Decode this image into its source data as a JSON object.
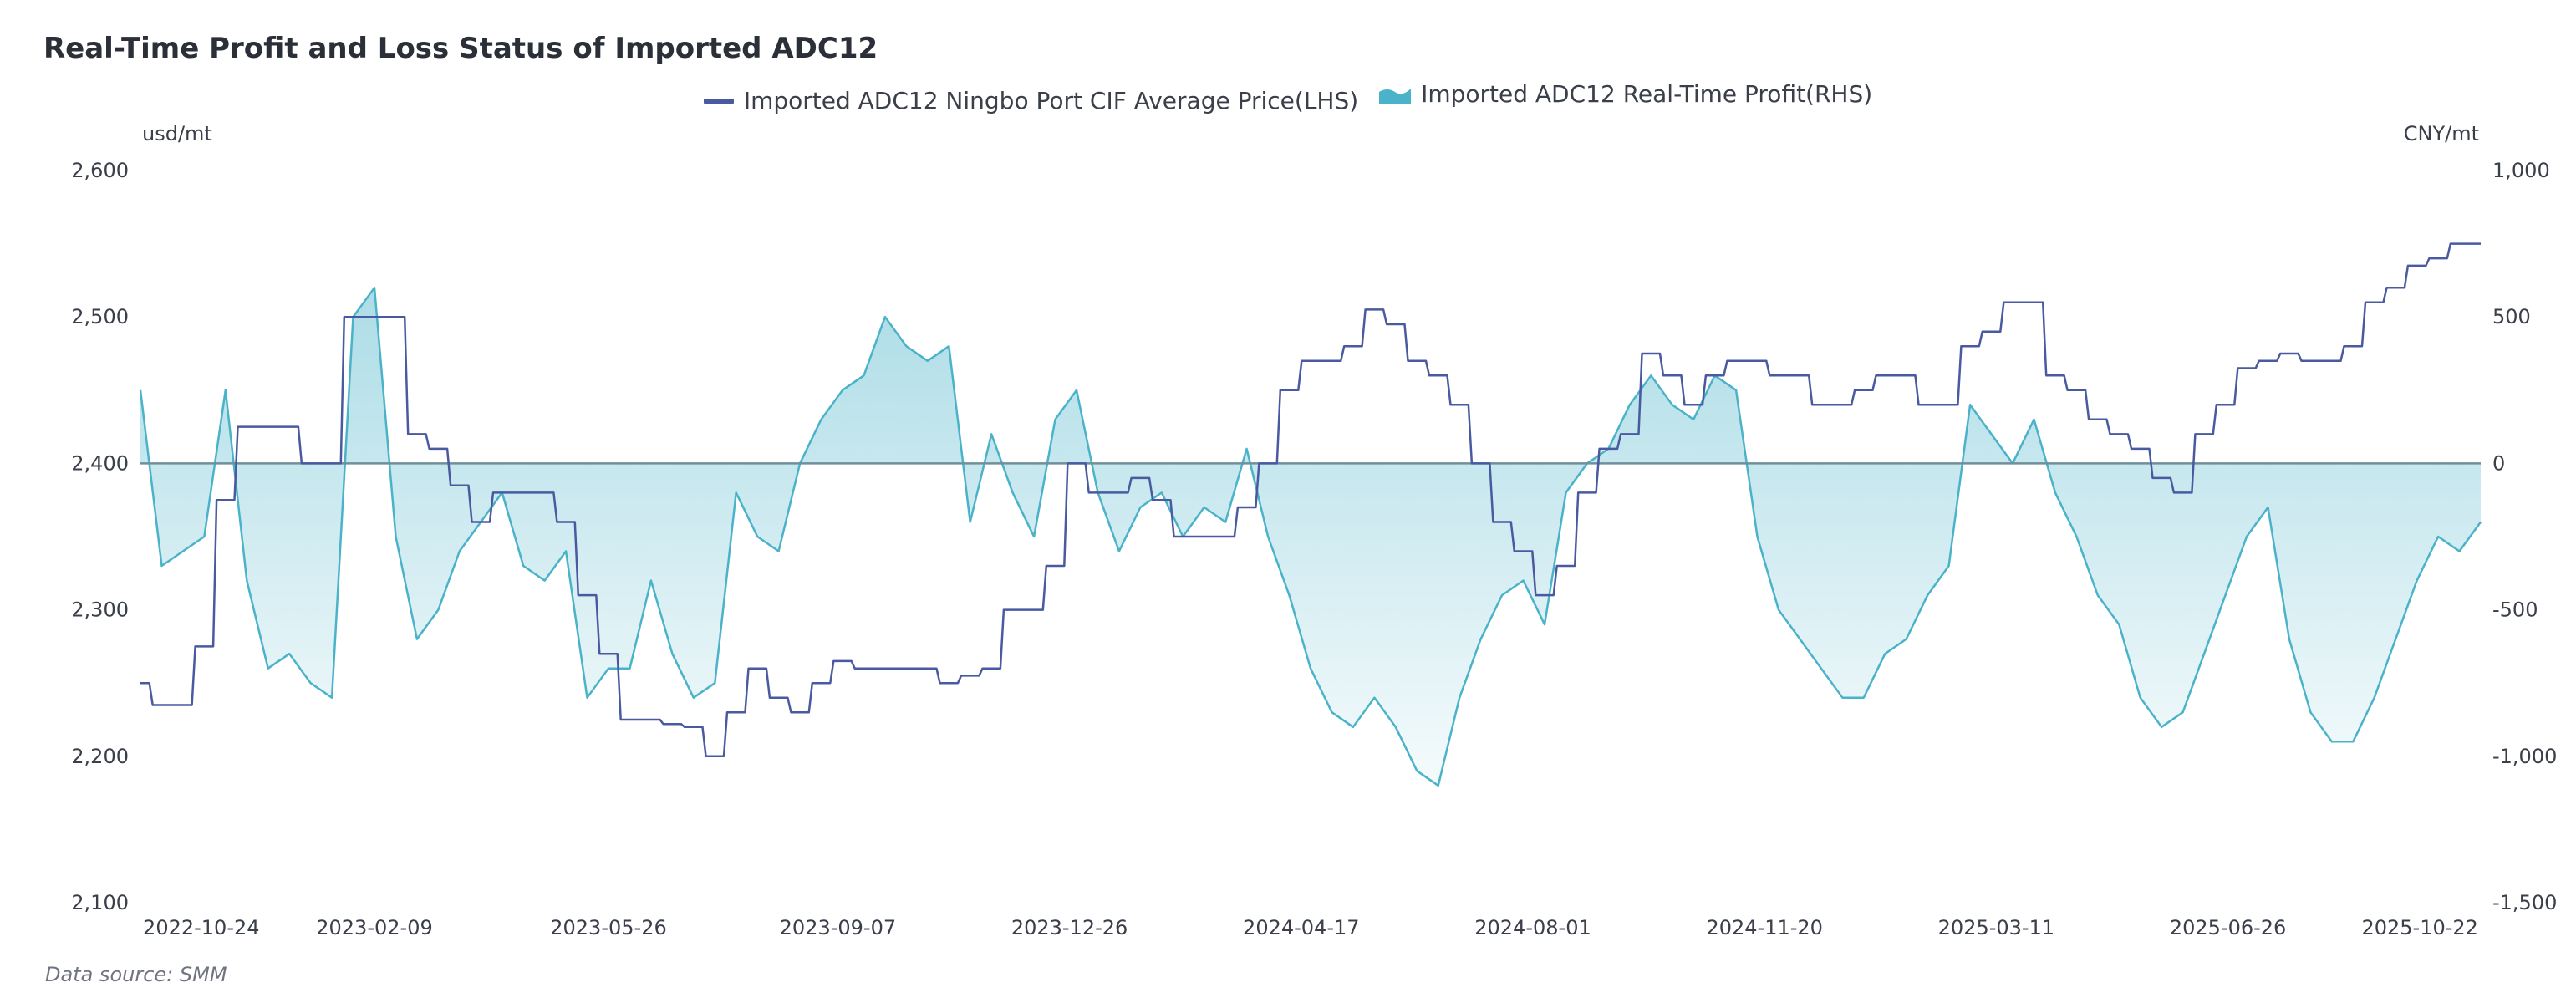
{
  "chart_data": {
    "type": "line",
    "title": "Real-Time Profit and Loss Status of Imported ADC12",
    "legend_position": "top-center",
    "x_tick_labels": [
      "2022-10-24",
      "2023-02-09",
      "2023-05-26",
      "2023-09-07",
      "2023-12-26",
      "2024-04-17",
      "2024-08-01",
      "2024-11-20",
      "2025-03-11",
      "2025-06-26",
      "2025-10-22"
    ],
    "x_tick_sample_index": [
      5,
      14,
      27,
      40,
      53,
      66,
      79,
      92,
      105,
      118,
      128
    ],
    "x_range_labels": [
      "2022-10-24",
      "2025-10-22"
    ],
    "y_left": {
      "label": "usd/mt",
      "min": 2100,
      "max": 2600,
      "ticks": [
        2100,
        2200,
        2300,
        2400,
        2500,
        2600
      ]
    },
    "y_right": {
      "label": "CNY/mt",
      "min": -1500,
      "max": 1000,
      "ticks": [
        -1500,
        -1000,
        -500,
        0,
        500,
        1000
      ]
    },
    "grid": false,
    "series": [
      {
        "name": "Imported ADC12 Ningbo Port CIF Average Price(LHS)",
        "type": "line",
        "axis": "left",
        "color": "#4a5aa0",
        "values": [
          2250,
          2235,
          2235,
          2275,
          2375,
          2425,
          2425,
          2425,
          2400,
          2400,
          2500,
          2500,
          2500,
          2420,
          2410,
          2385,
          2360,
          2380,
          2380,
          2380,
          2360,
          2310,
          2270,
          2225,
          2225,
          2222,
          2220,
          2200,
          2230,
          2260,
          2240,
          2230,
          2250,
          2265,
          2260,
          2260,
          2260,
          2260,
          2250,
          2255,
          2260,
          2300,
          2300,
          2330,
          2400,
          2380,
          2380,
          2390,
          2375,
          2350,
          2350,
          2350,
          2370,
          2400,
          2450,
          2470,
          2470,
          2480,
          2505,
          2495,
          2470,
          2460,
          2440,
          2400,
          2360,
          2340,
          2310,
          2330,
          2380,
          2410,
          2420,
          2475,
          2460,
          2440,
          2460,
          2470,
          2470,
          2460,
          2460,
          2440,
          2440,
          2450,
          2460,
          2460,
          2440,
          2440,
          2480,
          2490,
          2510,
          2510,
          2460,
          2450,
          2430,
          2420,
          2410,
          2390,
          2380,
          2420,
          2440,
          2465,
          2470,
          2475,
          2470,
          2470,
          2480,
          2510,
          2520,
          2535,
          2540,
          2550,
          2550
        ]
      },
      {
        "name": "Imported ADC12 Real-Time Profit(RHS)",
        "type": "area",
        "axis": "right",
        "color": "#4ab3c9",
        "values": [
          250,
          -350,
          -300,
          -250,
          250,
          -400,
          -700,
          -650,
          -750,
          -800,
          500,
          600,
          -250,
          -600,
          -500,
          -300,
          -200,
          -100,
          -350,
          -400,
          -300,
          -800,
          -700,
          -700,
          -400,
          -650,
          -800,
          -750,
          -100,
          -250,
          -300,
          0,
          150,
          250,
          300,
          500,
          400,
          350,
          400,
          -200,
          100,
          -100,
          -250,
          150,
          250,
          -100,
          -300,
          -150,
          -100,
          -250,
          -150,
          -200,
          50,
          -250,
          -450,
          -700,
          -850,
          -900,
          -800,
          -900,
          -1050,
          -1100,
          -800,
          -600,
          -450,
          -400,
          -550,
          -100,
          0,
          50,
          200,
          300,
          200,
          150,
          300,
          250,
          -250,
          -500,
          -600,
          -700,
          -800,
          -800,
          -650,
          -600,
          -450,
          -350,
          200,
          100,
          0,
          150,
          -100,
          -250,
          -450,
          -550,
          -800,
          -900,
          -850,
          -650,
          -450,
          -250,
          -150,
          -600,
          -850,
          -950,
          -950,
          -800,
          -600,
          -400,
          -250,
          -300,
          -200
        ]
      }
    ]
  },
  "legend": {
    "items": [
      {
        "label": "Imported ADC12 Ningbo Port CIF Average Price(LHS)",
        "icon": "line-icon"
      },
      {
        "label": "Imported ADC12 Real-Time Profit(RHS)",
        "icon": "area-icon"
      }
    ]
  },
  "left_axis_unit": "usd/mt",
  "right_axis_unit": "CNY/mt",
  "left_ticks": [
    "2,600",
    "2,500",
    "2,400",
    "2,300",
    "2,200",
    "2,100"
  ],
  "right_ticks": [
    "1,000",
    "500",
    "0",
    "-500",
    "-1,000",
    "-1,500"
  ],
  "source": "Data source:  SMM"
}
